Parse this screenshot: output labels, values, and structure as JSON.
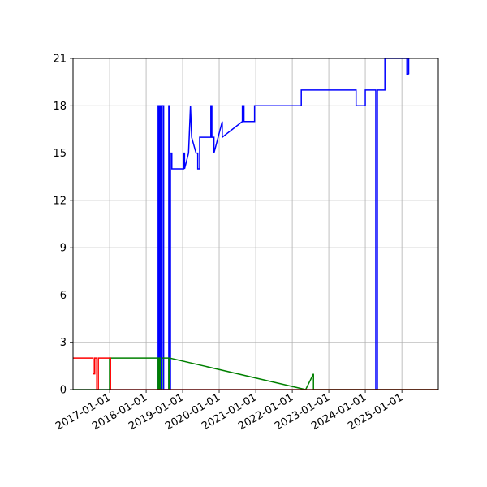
{
  "chart_data": {
    "type": "line",
    "title": "",
    "xlabel": "",
    "ylabel": "",
    "x_type": "date",
    "xlim": [
      "2016-01-01",
      "2025-12-31"
    ],
    "ylim": [
      0,
      21
    ],
    "grid": true,
    "y_ticks": [
      0,
      3,
      6,
      9,
      12,
      15,
      18,
      21
    ],
    "x_ticks": [
      "2017-01-01",
      "2018-01-01",
      "2019-01-01",
      "2020-01-01",
      "2021-01-01",
      "2022-01-01",
      "2023-01-01",
      "2024-01-01",
      "2025-01-01"
    ],
    "series": [
      {
        "color": "#0000ff",
        "x": [
          "2018-05-01",
          "2018-05-01",
          "2018-05-10",
          "2018-05-10",
          "2018-05-20",
          "2018-05-20",
          "2018-06-01",
          "2018-06-01",
          "2018-06-10",
          "2018-06-10",
          "2018-06-25",
          "2018-06-25",
          "2018-08-15",
          "2018-08-15",
          "2018-08-25",
          "2018-08-25",
          "2018-09-01",
          "2018-09-01",
          "2018-09-15",
          "2018-09-15",
          "2018-10-01",
          "2019-01-10",
          "2019-01-10",
          "2019-01-20",
          "2019-01-20",
          "2019-03-01",
          "2019-03-01",
          "2019-03-20",
          "2019-03-20",
          "2019-04-01",
          "2019-04-01",
          "2019-05-15",
          "2019-06-01",
          "2019-06-01",
          "2019-06-20",
          "2019-06-20",
          "2019-10-10",
          "2019-10-10",
          "2019-10-20",
          "2019-10-20",
          "2019-11-10",
          "2019-11-10",
          "2020-02-01",
          "2020-02-01",
          "2020-08-20",
          "2020-08-20",
          "2020-09-05",
          "2020-09-05",
          "2020-12-20",
          "2020-12-20",
          "2021-01-15",
          "2021-01-15",
          "2022-04-01",
          "2022-04-01",
          "2023-10-01",
          "2023-10-01",
          "2024-01-01",
          "2024-01-01",
          "2024-04-15",
          "2024-04-15",
          "2024-05-01",
          "2024-05-01",
          "2024-07-15",
          "2024-07-15",
          "2024-09-01",
          "2025-01-01",
          "2025-02-20",
          "2025-02-20",
          "2025-03-05",
          "2025-03-05",
          "2025-03-10",
          "2025-03-10"
        ],
        "y": [
          0,
          18,
          18,
          0,
          0,
          18,
          18,
          0,
          0,
          18,
          18,
          0,
          0,
          18,
          18,
          0,
          0,
          15,
          15,
          14,
          14,
          14,
          15,
          15,
          14,
          15,
          15,
          18,
          18,
          16,
          16,
          15,
          15,
          14,
          14,
          16,
          16,
          18,
          18,
          16,
          16,
          15,
          17,
          16,
          17,
          18,
          18,
          17,
          17,
          18,
          18,
          18,
          18,
          19,
          19,
          18,
          18,
          19,
          19,
          0,
          0,
          19,
          19,
          21,
          21,
          21,
          21,
          20,
          20,
          21,
          21,
          20
        ]
      },
      {
        "color": "#008000",
        "x": [
          "2016-01-01",
          "2016-12-31",
          "2016-12-31",
          "2018-05-01",
          "2018-05-01",
          "2018-05-10",
          "2018-05-10",
          "2018-05-20",
          "2018-05-20",
          "2018-06-10",
          "2018-06-10",
          "2018-08-15",
          "2018-08-15",
          "2018-08-25",
          "2018-08-25",
          "2022-05-15",
          "2022-08-01",
          "2022-08-01",
          "2025-12-31"
        ],
        "y": [
          0,
          0,
          2,
          2,
          0,
          0,
          2,
          2,
          0,
          0,
          2,
          2,
          0,
          0,
          2,
          0,
          1,
          0,
          0
        ]
      },
      {
        "color": "#ff0000",
        "x": [
          "2016-01-01",
          "2016-07-20",
          "2016-07-20",
          "2016-08-05",
          "2016-08-05",
          "2016-08-25",
          "2016-08-25",
          "2016-09-10",
          "2016-09-10",
          "2017-01-10",
          "2017-01-10",
          "2017-01-25",
          "2017-01-25",
          "2025-12-31"
        ],
        "y": [
          2,
          2,
          1,
          1,
          2,
          2,
          0,
          0,
          2,
          2,
          0,
          0,
          0,
          0
        ]
      }
    ]
  }
}
